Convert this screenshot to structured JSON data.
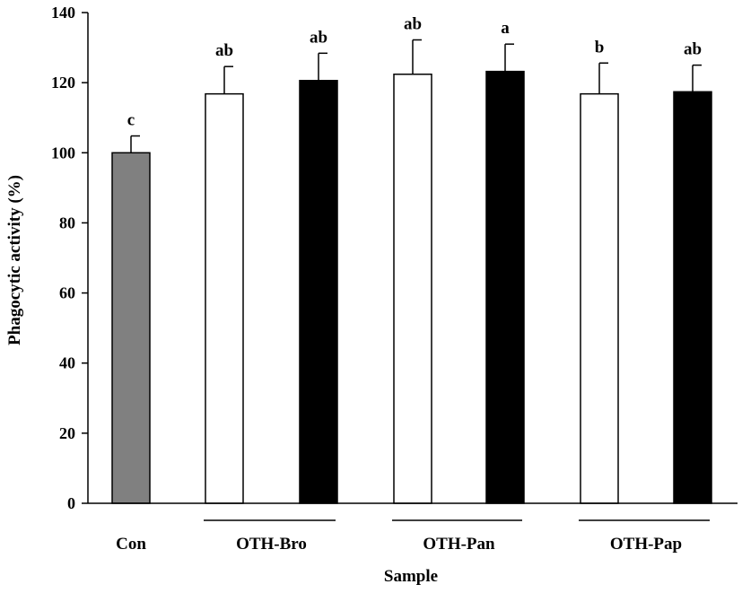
{
  "chart_data": {
    "type": "bar",
    "title": "",
    "xlabel": "Sample",
    "ylabel": "Phagocytic activity (%)",
    "ylim": [
      0,
      140
    ],
    "yticks": [
      0,
      20,
      40,
      60,
      80,
      100,
      120,
      140
    ],
    "grid": false,
    "legend": "none",
    "groups": [
      {
        "label": "Con",
        "bars": [
          0
        ]
      },
      {
        "label": "OTH-Bro",
        "bars": [
          1,
          2
        ]
      },
      {
        "label": "OTH-Pan",
        "bars": [
          3,
          4
        ]
      },
      {
        "label": "OTH-Pap",
        "bars": [
          5,
          6
        ]
      }
    ],
    "bars": [
      {
        "value": 100.0,
        "error": 4.8,
        "significance": "c",
        "fill": "#808080"
      },
      {
        "value": 116.8,
        "error": 7.8,
        "significance": "ab",
        "fill": "#ffffff"
      },
      {
        "value": 120.6,
        "error": 7.8,
        "significance": "ab",
        "fill": "#000000"
      },
      {
        "value": 122.4,
        "error": 9.8,
        "significance": "ab",
        "fill": "#ffffff"
      },
      {
        "value": 123.2,
        "error": 7.8,
        "significance": "a",
        "fill": "#000000"
      },
      {
        "value": 116.8,
        "error": 8.8,
        "significance": "b",
        "fill": "#ffffff"
      },
      {
        "value": 117.4,
        "error": 7.6,
        "significance": "ab",
        "fill": "#000000"
      }
    ]
  }
}
